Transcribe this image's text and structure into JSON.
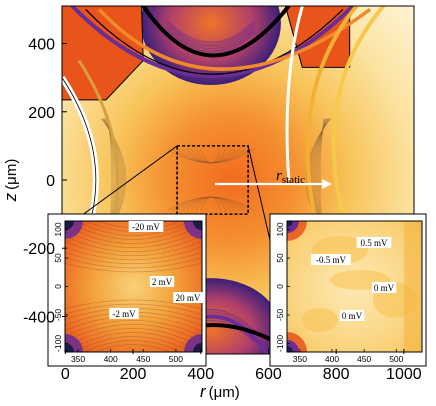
{
  "chart_data": {
    "type": "contour",
    "xlabel": "r",
    "xlabel_unit": "(μm)",
    "ylabel": "z",
    "ylabel_unit": "(μm)",
    "xlim": [
      -10,
      1030
    ],
    "ylim": [
      -510,
      510
    ],
    "x_ticks": [
      "0",
      "200",
      "400",
      "600",
      "800",
      "1000"
    ],
    "x_tick_values": [
      0,
      200,
      400,
      600,
      800,
      1000
    ],
    "y_ticks": [
      "400",
      "200",
      "0",
      "-200",
      "-400"
    ],
    "y_tick_values": [
      400,
      200,
      0,
      -200,
      -400
    ],
    "arrow_label_main": "r",
    "arrow_label_sub": "static",
    "zoom_region": {
      "r": [
        330,
        540
      ],
      "z": [
        -100,
        100
      ]
    },
    "insets": [
      {
        "x_ticks": [
          "350",
          "400",
          "450",
          "500"
        ],
        "x_tick_values": [
          350,
          400,
          450,
          500
        ],
        "y_ticks": [
          "100",
          "50",
          "0",
          "-50",
          "-100"
        ],
        "y_tick_values": [
          100,
          50,
          0,
          -50,
          -100
        ],
        "labels": [
          "-20 mV",
          "2 mV",
          "20 mV",
          "-2 mV"
        ]
      },
      {
        "x_ticks": [
          "350",
          "400",
          "450",
          "500"
        ],
        "x_tick_values": [
          350,
          400,
          450,
          500
        ],
        "y_ticks": [
          "100",
          "50",
          "0",
          "-50",
          "-100"
        ],
        "y_tick_values": [
          100,
          50,
          0,
          -50,
          -100
        ],
        "labels": [
          "0.5 mV",
          "-0.5 mV",
          "0 mV",
          "0 mV"
        ]
      }
    ],
    "colors": {
      "orange": "#f26b1f",
      "deep_orange": "#e8541a",
      "purple": "#6a2c96",
      "yellow": "#f6c94a",
      "light_yellow": "#fbe3a1"
    }
  }
}
